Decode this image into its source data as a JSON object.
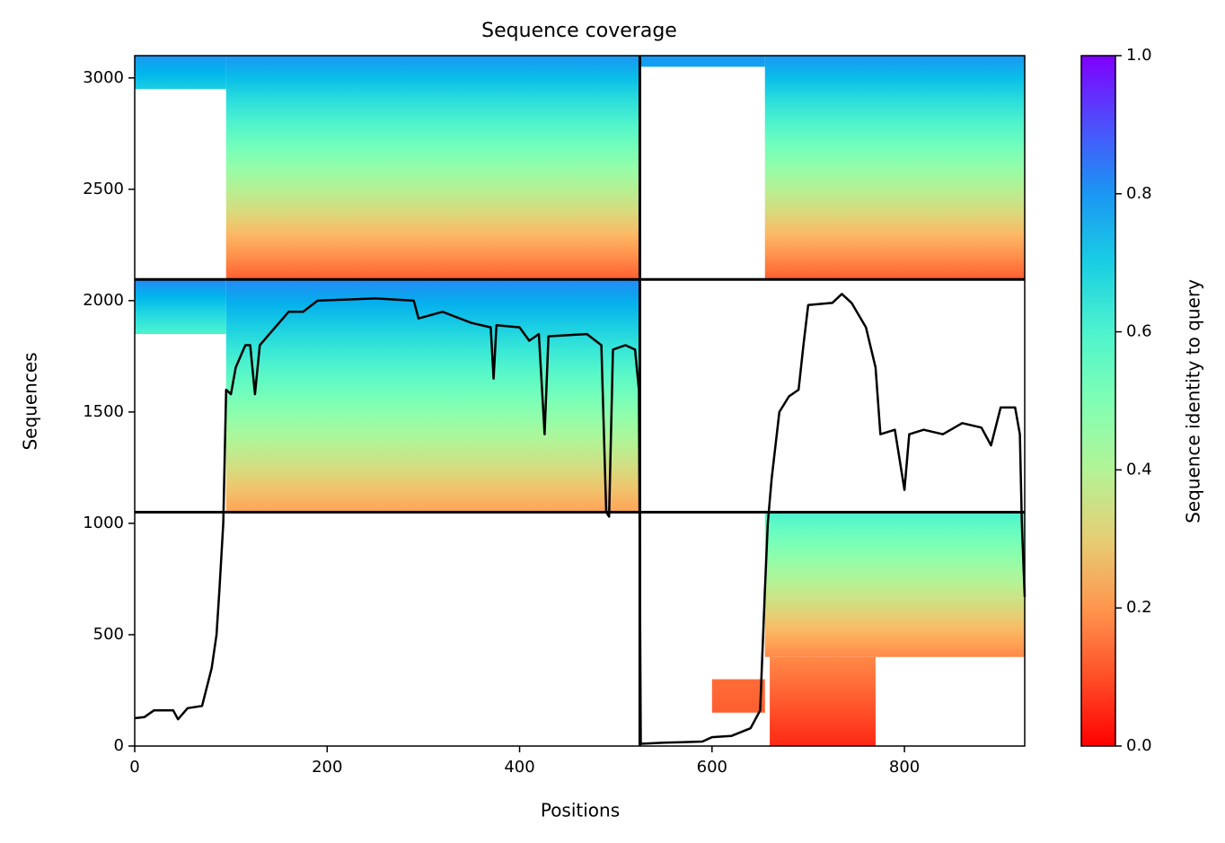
{
  "chart_data": {
    "type": "coverage",
    "title": "Sequence coverage",
    "xlabel": "Positions",
    "ylabel": "Sequences",
    "colorbar_label": "Sequence identity to query",
    "xlim": [
      0,
      925
    ],
    "ylim": [
      0,
      3100
    ],
    "xticks": [
      0,
      200,
      400,
      600,
      800
    ],
    "yticks": [
      0,
      500,
      1000,
      1500,
      2000,
      2500,
      3000
    ],
    "clim": [
      0,
      1
    ],
    "cticks": [
      {
        "value": 0,
        "label": "0.0"
      },
      0.2,
      0.4,
      0.6,
      0.8,
      {
        "value": 1,
        "label": "1.0"
      }
    ],
    "blocks": [
      {
        "x": [
          95,
          525
        ],
        "y": [
          2095,
          3100
        ],
        "identity": [
          0.12,
          0.8
        ]
      },
      {
        "x": [
          0,
          95
        ],
        "y": [
          2950,
          3100
        ],
        "identity": [
          0.7,
          0.8
        ]
      },
      {
        "x": [
          655,
          925
        ],
        "y": [
          2095,
          3100
        ],
        "identity": [
          0.12,
          0.8
        ]
      },
      {
        "x": [
          525,
          655
        ],
        "y": [
          3050,
          3100
        ],
        "identity": [
          0.78,
          0.8
        ]
      },
      {
        "x": [
          95,
          525
        ],
        "y": [
          1050,
          2095
        ],
        "identity": [
          0.22,
          0.82
        ]
      },
      {
        "x": [
          0,
          95
        ],
        "y": [
          1850,
          2095
        ],
        "identity": [
          0.6,
          0.82
        ]
      },
      {
        "x": [
          655,
          925
        ],
        "y": [
          400,
          1050
        ],
        "identity": [
          0.18,
          0.6
        ]
      },
      {
        "x": [
          660,
          770
        ],
        "y": [
          0,
          400
        ],
        "identity": [
          0.05,
          0.18
        ]
      },
      {
        "x": [
          600,
          655
        ],
        "y": [
          150,
          300
        ],
        "identity": [
          0.12,
          0.14
        ]
      }
    ],
    "dividers": {
      "x": [
        525
      ],
      "y": [
        1050,
        2095
      ]
    },
    "line_color": "#000000",
    "x": [
      0,
      10,
      20,
      40,
      45,
      55,
      70,
      80,
      85,
      88,
      92,
      95,
      100,
      105,
      115,
      120,
      125,
      130,
      140,
      150,
      160,
      175,
      190,
      250,
      290,
      295,
      320,
      350,
      370,
      373,
      376,
      400,
      410,
      420,
      426,
      430,
      470,
      485,
      490,
      493,
      497,
      510,
      520,
      524,
      526,
      550,
      590,
      600,
      620,
      640,
      650,
      655,
      658,
      662,
      670,
      680,
      690,
      695,
      700,
      725,
      735,
      745,
      760,
      770,
      775,
      790,
      800,
      805,
      820,
      840,
      860,
      880,
      890,
      900,
      915,
      920,
      922,
      925
    ],
    "values": [
      125,
      130,
      160,
      160,
      120,
      170,
      180,
      350,
      500,
      700,
      1000,
      1600,
      1580,
      1700,
      1800,
      1800,
      1580,
      1800,
      1850,
      1900,
      1950,
      1950,
      2000,
      2010,
      2000,
      1920,
      1950,
      1900,
      1880,
      1650,
      1890,
      1880,
      1820,
      1850,
      1400,
      1840,
      1850,
      1800,
      1050,
      1030,
      1780,
      1800,
      1780,
      1600,
      10,
      15,
      20,
      40,
      45,
      80,
      160,
      700,
      1000,
      1200,
      1500,
      1570,
      1600,
      1800,
      1980,
      1990,
      2030,
      1990,
      1880,
      1700,
      1400,
      1420,
      1150,
      1400,
      1420,
      1400,
      1450,
      1430,
      1350,
      1520,
      1520,
      1400,
      1000,
      670
    ]
  }
}
